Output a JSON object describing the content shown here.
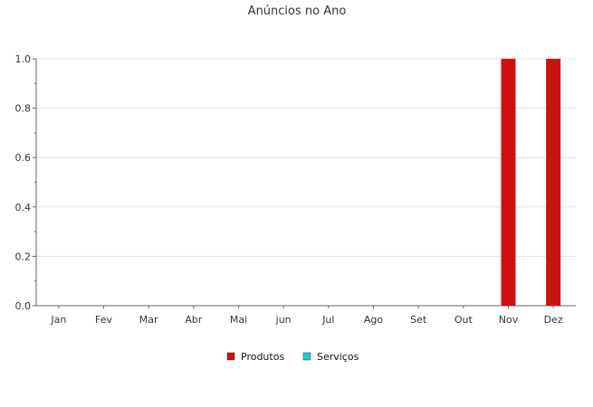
{
  "chart_data": {
    "type": "bar",
    "title": "Anúncios no Ano",
    "xlabel": "",
    "ylabel": "",
    "categories": [
      "Jan",
      "Fev",
      "Mar",
      "Abr",
      "Mai",
      "jun",
      "Jul",
      "Ago",
      "Set",
      "Out",
      "Nov",
      "Dez"
    ],
    "series": [
      {
        "name": "Produtos",
        "color": "#cc1111",
        "values": [
          0,
          0,
          0,
          0,
          0,
          0,
          0,
          0,
          0,
          0,
          1,
          1
        ]
      },
      {
        "name": "Serviços",
        "color": "#22cccc",
        "values": [
          0,
          0,
          0,
          0,
          0,
          0,
          0,
          0,
          0,
          0,
          0,
          0
        ]
      }
    ],
    "ylim": [
      0,
      1.0
    ],
    "yticks": [
      "0.0",
      "0.2",
      "0.4",
      "0.6",
      "0.8",
      "1.0"
    ],
    "grid": true,
    "legend_position": "bottom"
  }
}
